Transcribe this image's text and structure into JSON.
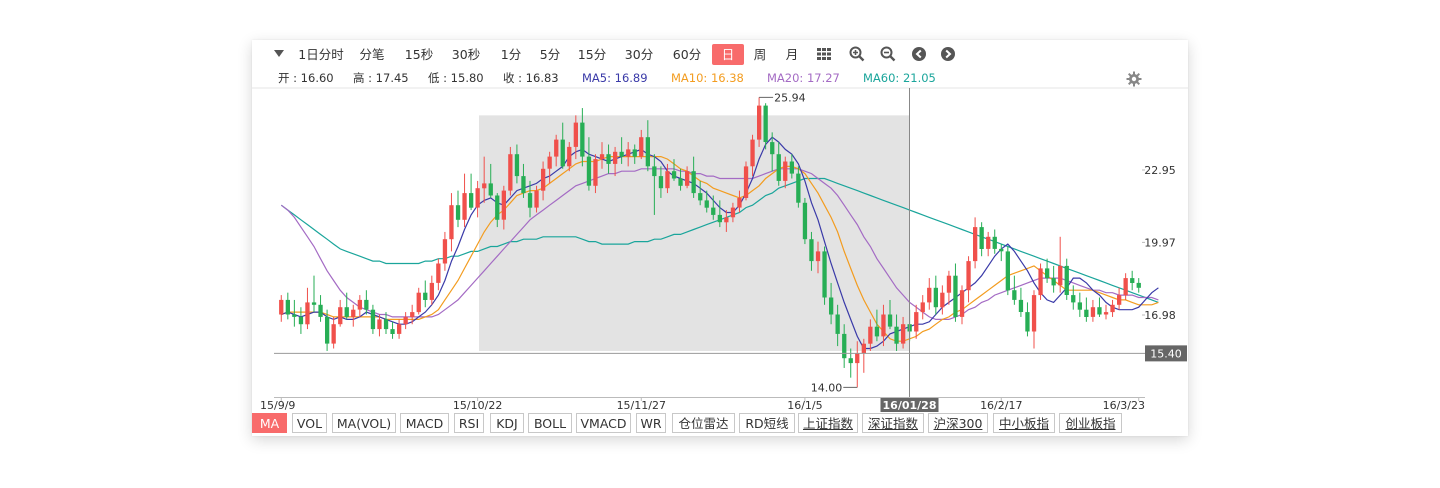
{
  "toolbar": {
    "periods": [
      "1日分时",
      "分笔",
      "15秒",
      "30秒",
      "1分",
      "5分",
      "15分",
      "30分",
      "60分",
      "日",
      "周",
      "月"
    ],
    "active_period": "日",
    "icons": [
      "grid-icon",
      "zoom-in-icon",
      "zoom-out-icon",
      "arrow-left-icon",
      "arrow-right-icon"
    ]
  },
  "info": {
    "open": "开 : 16.60",
    "high": "高 : 17.45",
    "low": "低 : 15.80",
    "close": "收 : 16.83",
    "ma5": "MA5: 16.89",
    "ma10": "MA10: 16.38",
    "ma20": "MA20: 17.27",
    "ma60": "MA60: 21.05"
  },
  "colors": {
    "up": "#f0504b",
    "down": "#27ae55",
    "ma5": "#3a3aa8",
    "ma10": "#f39c1f",
    "ma20": "#a46bc4",
    "ma60": "#1aa59b",
    "active": "#f86b6b"
  },
  "chart_data": {
    "type": "candlestick",
    "y_ticks": [
      "22.95",
      "19.97",
      "16.98"
    ],
    "current_price": "15.40",
    "max_label": "25.94",
    "min_label": "14.00",
    "x_labels": [
      "15/9/9",
      "15/10/22",
      "15/11/27",
      "16/1/5",
      "16/01/28",
      "16/2/17",
      "16/3/23"
    ],
    "crosshair_date": "16/01/28",
    "ylim": [
      13.0,
      26.5
    ],
    "candles": [
      [
        17.0,
        17.8,
        16.7,
        17.6
      ],
      [
        17.6,
        17.9,
        16.8,
        17.0
      ],
      [
        17.0,
        17.6,
        16.5,
        16.9
      ],
      [
        16.9,
        17.3,
        16.2,
        16.6
      ],
      [
        16.6,
        18.1,
        16.4,
        17.5
      ],
      [
        17.5,
        18.6,
        17.1,
        17.4
      ],
      [
        17.4,
        17.8,
        16.7,
        16.9
      ],
      [
        16.9,
        17.2,
        15.5,
        15.8
      ],
      [
        15.8,
        16.9,
        15.6,
        16.6
      ],
      [
        16.6,
        17.6,
        16.5,
        17.3
      ],
      [
        17.3,
        17.9,
        16.8,
        16.9
      ],
      [
        16.9,
        17.4,
        16.5,
        17.2
      ],
      [
        17.2,
        17.8,
        16.9,
        17.6
      ],
      [
        17.6,
        18.0,
        17.0,
        17.2
      ],
      [
        17.2,
        17.4,
        16.2,
        16.4
      ],
      [
        16.4,
        17.0,
        16.1,
        16.8
      ],
      [
        16.8,
        17.1,
        16.2,
        16.4
      ],
      [
        16.4,
        16.7,
        16.0,
        16.2
      ],
      [
        16.2,
        16.8,
        16.0,
        16.6
      ],
      [
        16.6,
        17.1,
        16.4,
        16.9
      ],
      [
        16.9,
        17.4,
        16.6,
        17.1
      ],
      [
        17.1,
        18.1,
        17.0,
        17.9
      ],
      [
        17.9,
        18.4,
        17.3,
        17.6
      ],
      [
        17.6,
        18.6,
        17.4,
        18.3
      ],
      [
        18.3,
        19.3,
        18.0,
        19.1
      ],
      [
        19.1,
        20.4,
        18.8,
        20.1
      ],
      [
        20.1,
        22.0,
        19.6,
        21.5
      ],
      [
        21.5,
        22.1,
        20.6,
        20.9
      ],
      [
        20.9,
        22.8,
        20.6,
        22.0
      ],
      [
        22.0,
        22.8,
        21.3,
        21.4
      ],
      [
        21.4,
        22.5,
        21.0,
        22.2
      ],
      [
        22.2,
        23.5,
        21.6,
        22.4
      ],
      [
        22.4,
        23.2,
        21.8,
        21.9
      ],
      [
        21.9,
        22.0,
        20.6,
        20.9
      ],
      [
        20.9,
        22.3,
        20.5,
        22.1
      ],
      [
        22.1,
        23.9,
        21.9,
        23.6
      ],
      [
        23.6,
        24.0,
        22.4,
        22.7
      ],
      [
        22.7,
        23.2,
        21.8,
        22.0
      ],
      [
        22.0,
        22.5,
        21.0,
        21.4
      ],
      [
        21.4,
        22.3,
        21.2,
        22.1
      ],
      [
        22.1,
        23.3,
        21.7,
        23.0
      ],
      [
        23.0,
        23.7,
        22.4,
        23.5
      ],
      [
        23.5,
        24.4,
        23.1,
        24.2
      ],
      [
        24.2,
        24.9,
        23.0,
        23.1
      ],
      [
        23.1,
        24.1,
        22.9,
        23.9
      ],
      [
        23.9,
        25.2,
        23.4,
        24.9
      ],
      [
        24.9,
        25.5,
        23.1,
        23.5
      ],
      [
        23.5,
        24.3,
        22.1,
        22.3
      ],
      [
        22.3,
        23.6,
        22.0,
        23.4
      ],
      [
        23.4,
        24.1,
        23.0,
        23.6
      ],
      [
        23.6,
        24.0,
        22.8,
        23.2
      ],
      [
        23.2,
        23.9,
        22.7,
        23.7
      ],
      [
        23.7,
        24.3,
        23.2,
        23.5
      ],
      [
        23.5,
        24.1,
        23.1,
        23.8
      ],
      [
        23.8,
        24.0,
        23.2,
        23.5
      ],
      [
        23.5,
        24.6,
        23.4,
        24.3
      ],
      [
        24.3,
        25.0,
        22.9,
        23.1
      ],
      [
        23.1,
        23.6,
        21.1,
        22.7
      ],
      [
        22.7,
        23.1,
        21.8,
        22.2
      ],
      [
        22.2,
        23.2,
        22.0,
        22.9
      ],
      [
        22.9,
        23.4,
        22.5,
        22.6
      ],
      [
        22.6,
        23.0,
        22.1,
        22.3
      ],
      [
        22.3,
        23.1,
        22.2,
        22.9
      ],
      [
        22.9,
        23.5,
        21.8,
        22.0
      ],
      [
        22.0,
        22.5,
        21.5,
        21.7
      ],
      [
        21.7,
        22.1,
        21.2,
        21.4
      ],
      [
        21.4,
        21.9,
        20.9,
        21.1
      ],
      [
        21.1,
        21.7,
        20.6,
        20.8
      ],
      [
        20.8,
        21.3,
        20.4,
        21.0
      ],
      [
        21.0,
        21.6,
        20.8,
        21.4
      ],
      [
        21.4,
        22.1,
        21.2,
        21.8
      ],
      [
        21.8,
        23.3,
        21.7,
        23.1
      ],
      [
        23.1,
        24.4,
        22.7,
        24.2
      ],
      [
        24.2,
        25.94,
        23.9,
        25.6
      ],
      [
        25.6,
        25.7,
        23.8,
        24.1
      ],
      [
        24.1,
        24.5,
        22.9,
        23.6
      ],
      [
        23.6,
        24.1,
        22.3,
        22.5
      ],
      [
        22.5,
        23.5,
        22.2,
        23.3
      ],
      [
        23.3,
        23.6,
        22.6,
        22.8
      ],
      [
        22.8,
        23.1,
        21.4,
        21.6
      ],
      [
        21.6,
        21.8,
        19.9,
        20.1
      ],
      [
        20.1,
        20.4,
        18.8,
        19.2
      ],
      [
        19.2,
        20.0,
        18.7,
        19.6
      ],
      [
        19.6,
        19.8,
        17.4,
        17.7
      ],
      [
        17.7,
        18.3,
        16.6,
        17.0
      ],
      [
        17.0,
        17.4,
        15.7,
        16.2
      ],
      [
        16.2,
        16.6,
        14.8,
        15.2
      ],
      [
        15.2,
        15.6,
        14.4,
        15.0
      ],
      [
        15.0,
        15.9,
        14.0,
        15.4
      ],
      [
        15.4,
        16.0,
        14.6,
        15.8
      ],
      [
        15.8,
        16.8,
        15.5,
        16.5
      ],
      [
        16.5,
        17.2,
        15.9,
        16.1
      ],
      [
        16.1,
        17.4,
        15.7,
        17.0
      ],
      [
        17.0,
        17.6,
        16.4,
        16.5
      ],
      [
        16.5,
        17.0,
        15.5,
        15.8
      ],
      [
        15.8,
        16.9,
        15.6,
        16.6
      ],
      [
        16.6,
        17.2,
        15.9,
        16.3
      ],
      [
        16.3,
        17.4,
        16.0,
        17.1
      ],
      [
        17.1,
        17.8,
        16.8,
        17.5
      ],
      [
        17.5,
        18.5,
        17.2,
        18.1
      ],
      [
        18.1,
        18.6,
        17.0,
        17.3
      ],
      [
        17.3,
        18.2,
        17.0,
        17.9
      ],
      [
        17.9,
        18.8,
        17.4,
        18.6
      ],
      [
        18.6,
        19.1,
        16.7,
        16.9
      ],
      [
        16.9,
        18.2,
        16.6,
        18.0
      ],
      [
        18.0,
        19.4,
        17.5,
        19.2
      ],
      [
        19.2,
        21.0,
        18.9,
        20.6
      ],
      [
        20.6,
        20.8,
        19.4,
        19.7
      ],
      [
        19.7,
        20.4,
        19.4,
        20.2
      ],
      [
        20.2,
        20.5,
        19.5,
        19.7
      ],
      [
        19.7,
        19.9,
        19.2,
        19.6
      ],
      [
        19.6,
        19.8,
        17.8,
        18.0
      ],
      [
        18.0,
        18.6,
        17.4,
        17.6
      ],
      [
        17.6,
        18.1,
        16.9,
        17.1
      ],
      [
        17.1,
        17.5,
        16.1,
        16.3
      ],
      [
        16.3,
        18.0,
        15.6,
        17.8
      ],
      [
        17.8,
        19.1,
        17.6,
        18.9
      ],
      [
        18.9,
        19.3,
        18.3,
        18.5
      ],
      [
        18.5,
        19.0,
        17.9,
        18.2
      ],
      [
        18.2,
        20.2,
        17.9,
        19.0
      ],
      [
        19.0,
        19.3,
        17.6,
        17.8
      ],
      [
        17.8,
        18.2,
        17.2,
        17.5
      ],
      [
        17.5,
        17.9,
        16.9,
        17.2
      ],
      [
        17.2,
        17.7,
        16.7,
        16.9
      ],
      [
        16.9,
        17.6,
        16.7,
        17.3
      ],
      [
        17.3,
        17.7,
        16.9,
        17.0
      ],
      [
        17.0,
        17.4,
        16.8,
        17.1
      ],
      [
        17.1,
        17.6,
        16.9,
        17.4
      ],
      [
        17.4,
        18.1,
        17.2,
        17.8
      ],
      [
        17.8,
        18.7,
        17.6,
        18.5
      ],
      [
        18.5,
        18.8,
        18.0,
        18.3
      ],
      [
        18.3,
        18.5,
        17.9,
        18.1
      ]
    ],
    "ma5": [
      17.0,
      17.1,
      17.0,
      16.9,
      17.0,
      17.1,
      17.1,
      16.9,
      16.8,
      16.9,
      16.8,
      16.8,
      16.9,
      17.1,
      17.0,
      16.9,
      16.8,
      16.7,
      16.6,
      16.6,
      16.7,
      16.9,
      17.1,
      17.4,
      17.8,
      18.4,
      19.2,
      19.8,
      20.5,
      21.1,
      21.5,
      21.7,
      21.8,
      21.6,
      21.5,
      21.8,
      22.1,
      22.2,
      22.3,
      22.4,
      22.6,
      22.7,
      22.9,
      23.1,
      23.5,
      23.7,
      23.8,
      23.6,
      23.5,
      23.4,
      23.3,
      23.4,
      23.5,
      23.6,
      23.7,
      23.8,
      23.6,
      23.5,
      23.3,
      22.9,
      22.7,
      22.6,
      22.5,
      22.4,
      22.2,
      22.0,
      21.7,
      21.4,
      21.2,
      21.2,
      21.5,
      22.0,
      22.6,
      23.4,
      24.0,
      24.3,
      24.1,
      23.8,
      23.6,
      23.2,
      22.5,
      21.6,
      20.9,
      20.0,
      19.1,
      18.3,
      17.5,
      16.8,
      16.1,
      15.6,
      15.6,
      15.7,
      15.9,
      16.2,
      16.3,
      16.4,
      16.5,
      16.6,
      16.6,
      16.7,
      17.0,
      17.3,
      17.5,
      17.7,
      17.9,
      18.1,
      18.3,
      18.6,
      19.0,
      19.4,
      19.7,
      19.9,
      19.6,
      19.2,
      18.8,
      18.3,
      17.9,
      17.6,
      17.5,
      17.8,
      18.1,
      18.5,
      18.5,
      18.3,
      18.0,
      17.8,
      17.5,
      17.3,
      17.2,
      17.2,
      17.2,
      17.3,
      17.6,
      17.9,
      18.1
    ],
    "ma10": [
      17.0,
      17.1,
      17.1,
      17.1,
      17.1,
      17.1,
      17.1,
      17.0,
      16.9,
      16.9,
      16.9,
      16.9,
      16.9,
      16.9,
      16.9,
      16.9,
      16.8,
      16.8,
      16.8,
      16.8,
      16.8,
      16.8,
      16.9,
      17.0,
      17.2,
      17.6,
      18.0,
      18.4,
      18.9,
      19.4,
      19.9,
      20.4,
      20.8,
      21.1,
      21.3,
      21.6,
      21.9,
      22.0,
      22.1,
      22.1,
      22.2,
      22.4,
      22.6,
      22.8,
      23.0,
      23.2,
      23.3,
      23.3,
      23.3,
      23.4,
      23.5,
      23.5,
      23.5,
      23.5,
      23.5,
      23.5,
      23.5,
      23.5,
      23.5,
      23.4,
      23.2,
      23.0,
      22.9,
      22.7,
      22.5,
      22.4,
      22.2,
      22.1,
      22.0,
      21.9,
      21.8,
      21.9,
      22.1,
      22.3,
      22.6,
      22.8,
      23.0,
      23.1,
      23.1,
      23.0,
      22.8,
      22.4,
      22.0,
      21.5,
      21.0,
      20.4,
      19.6,
      18.9,
      18.2,
      17.6,
      17.1,
      16.6,
      16.3,
      16.0,
      15.9,
      15.9,
      16.0,
      16.1,
      16.3,
      16.4,
      16.6,
      16.8,
      16.9,
      17.1,
      17.2,
      17.4,
      17.6,
      17.8,
      18.0,
      18.2,
      18.4,
      18.6,
      18.7,
      18.8,
      18.9,
      19.0,
      18.8,
      18.6,
      18.4,
      18.2,
      18.0,
      18.0,
      18.0,
      18.0,
      18.0,
      17.9,
      17.8,
      17.7,
      17.6,
      17.6,
      17.5,
      17.4,
      17.4,
      17.4,
      17.5
    ],
    "ma20": [
      21.5,
      21.3,
      21.0,
      20.6,
      20.2,
      19.8,
      19.3,
      18.8,
      18.4,
      18.0,
      17.7,
      17.5,
      17.3,
      17.2,
      17.1,
      17.0,
      17.0,
      16.9,
      16.9,
      16.9,
      16.9,
      16.9,
      16.9,
      16.9,
      17.0,
      17.2,
      17.4,
      17.6,
      17.9,
      18.2,
      18.5,
      18.8,
      19.1,
      19.4,
      19.7,
      20.0,
      20.3,
      20.6,
      20.9,
      21.1,
      21.3,
      21.5,
      21.7,
      21.9,
      22.1,
      22.3,
      22.4,
      22.5,
      22.6,
      22.7,
      22.8,
      22.8,
      22.9,
      22.9,
      22.9,
      23.0,
      23.0,
      23.0,
      23.0,
      23.0,
      23.0,
      22.9,
      22.9,
      22.8,
      22.8,
      22.7,
      22.7,
      22.6,
      22.6,
      22.6,
      22.6,
      22.6,
      22.6,
      22.7,
      22.8,
      22.9,
      23.0,
      23.0,
      23.0,
      23.0,
      22.9,
      22.8,
      22.6,
      22.4,
      22.2,
      21.9,
      21.5,
      21.1,
      20.7,
      20.2,
      19.8,
      19.3,
      18.9,
      18.5,
      18.1,
      17.8,
      17.5,
      17.3,
      17.1,
      16.9,
      16.8,
      16.8,
      16.8,
      16.9,
      17.0,
      17.2,
      17.3,
      17.5,
      17.6,
      17.8,
      17.9,
      18.0,
      18.1,
      18.2,
      18.3,
      18.4,
      18.5,
      18.5,
      18.5,
      18.5,
      18.4,
      18.3,
      18.2,
      18.1,
      18.0,
      18.0,
      17.9,
      17.9,
      17.8,
      17.8,
      17.8,
      17.7,
      17.7,
      17.7,
      17.6
    ],
    "ma60": [
      21.5,
      21.3,
      21.1,
      20.9,
      20.7,
      20.5,
      20.3,
      20.1,
      19.9,
      19.7,
      19.6,
      19.5,
      19.4,
      19.3,
      19.2,
      19.2,
      19.1,
      19.1,
      19.1,
      19.1,
      19.1,
      19.1,
      19.2,
      19.2,
      19.3,
      19.3,
      19.4,
      19.4,
      19.5,
      19.6,
      19.6,
      19.7,
      19.8,
      19.8,
      19.9,
      20.0,
      20.0,
      20.1,
      20.1,
      20.1,
      20.2,
      20.2,
      20.2,
      20.2,
      20.2,
      20.2,
      20.1,
      20.0,
      20.0,
      19.9,
      19.9,
      19.9,
      19.9,
      19.9,
      20.0,
      20.0,
      20.0,
      20.1,
      20.1,
      20.2,
      20.3,
      20.3,
      20.4,
      20.5,
      20.6,
      20.7,
      20.8,
      20.9,
      21.0,
      21.1,
      21.2,
      21.4,
      21.5,
      21.7,
      21.9,
      22.0,
      22.2,
      22.3,
      22.4,
      22.5,
      22.6,
      22.6,
      22.6,
      22.6,
      22.5,
      22.4,
      22.3,
      22.2,
      22.1,
      22.0,
      21.9,
      21.8,
      21.7,
      21.6,
      21.5,
      21.4,
      21.3,
      21.2,
      21.1,
      21.0,
      20.9,
      20.8,
      20.7,
      20.6,
      20.5,
      20.4,
      20.3,
      20.2,
      20.1,
      20.0,
      19.9,
      19.8,
      19.7,
      19.6,
      19.5,
      19.4,
      19.3,
      19.2,
      19.1,
      19.0,
      18.9,
      18.8,
      18.7,
      18.6,
      18.5,
      18.4,
      18.3,
      18.2,
      18.1,
      18.0,
      17.9,
      17.8,
      17.7,
      17.6,
      17.5
    ]
  },
  "indicators": [
    "MA",
    "VOL",
    "MA(VOL)",
    "MACD",
    "RSI",
    "KDJ",
    "BOLL",
    "VMACD",
    "WR",
    "仓位雷达",
    "RD短线",
    "上证指数",
    "深证指数",
    "沪深300",
    "中小板指",
    "创业板指"
  ],
  "active_indicator": "MA"
}
